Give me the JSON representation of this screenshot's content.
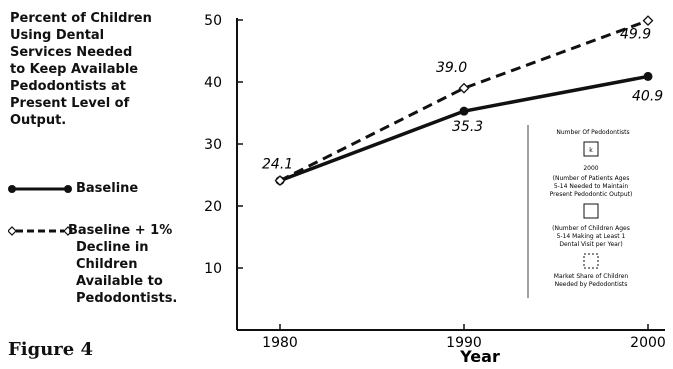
{
  "title_lines": [
    "Percent of Children",
    "Using Dental",
    "Services Needed",
    "to Keep Available",
    "Pedodontists at",
    "Present Level of",
    "Output."
  ],
  "figure_label": "Figure 4",
  "legend": {
    "baseline_label": "Baseline",
    "alt_label_lines": [
      "Baseline + 1%",
      "Decline in",
      "Children",
      "Available to",
      "Pedodontists."
    ]
  },
  "chart_data": {
    "type": "line",
    "x": [
      1980,
      1990,
      2000
    ],
    "xticks": [
      "1980",
      "1990",
      "2000"
    ],
    "xlabel": "Year",
    "ylabel": "",
    "ylim": [
      0,
      50
    ],
    "yticks": [
      "10",
      "20",
      "30",
      "40",
      "50"
    ],
    "grid": false,
    "legend_position": "left",
    "series": [
      {
        "name": "Baseline",
        "values": [
          24.1,
          35.3,
          40.9
        ],
        "style": "solid",
        "marker": "dot",
        "labels": [
          "24.1",
          "35.3",
          "40.9"
        ]
      },
      {
        "name": "Baseline + 1% Decline in Children Available to Pedodontists.",
        "values": [
          24.1,
          39.0,
          49.9
        ],
        "style": "dashed",
        "marker": "diamond",
        "labels": [
          "",
          "39.0",
          "49.9"
        ]
      }
    ]
  },
  "formula_box": {
    "top_label": "Number Of Pedodontists",
    "k_symbol": "k",
    "year": "2000",
    "patients_lines": [
      "(Number of Patients Ages",
      "5-14 Needed to Maintain",
      "Present Pedodontic Output)"
    ],
    "visit_lines": [
      "(Number of Children Ages",
      "5-14 Making at Least 1",
      "Dental Visit per Year)"
    ],
    "share_lines": [
      "Market Share of Children",
      "Needed by Pedodontists"
    ]
  },
  "colors": {
    "ink": "#111111",
    "background": "#ffffff"
  }
}
